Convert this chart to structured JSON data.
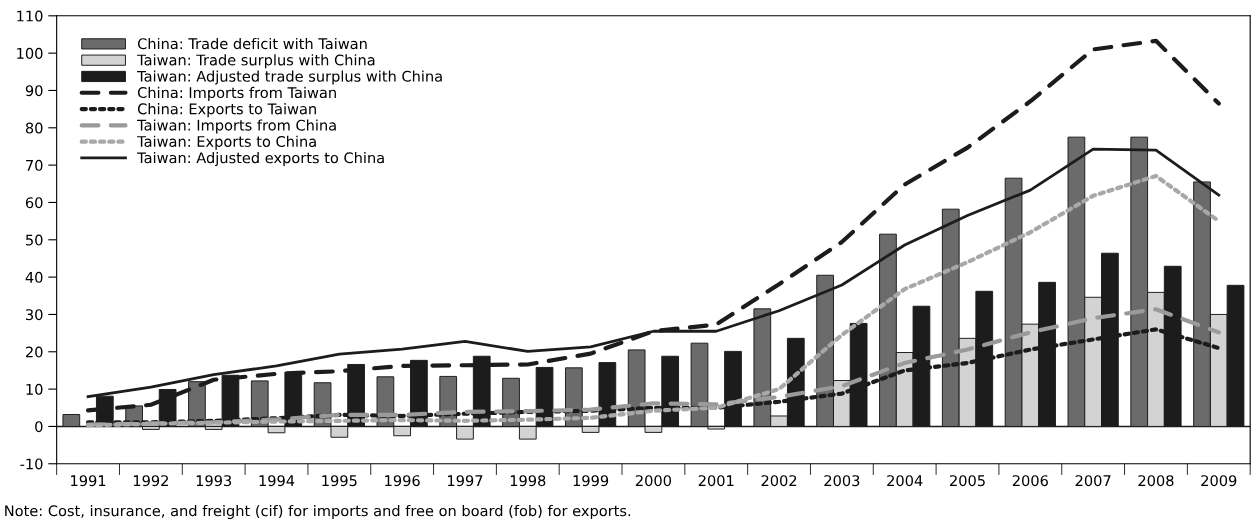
{
  "chart_data": {
    "type": "bar",
    "categories": [
      "1991",
      "1992",
      "1993",
      "1994",
      "1995",
      "1996",
      "1997",
      "1998",
      "1999",
      "2000",
      "2001",
      "2002",
      "2003",
      "2004",
      "2005",
      "2006",
      "2007",
      "2008",
      "2009"
    ],
    "series": [
      {
        "name": "China: Trade deficit with Taiwan",
        "color": "#6b6b6b",
        "values": [
          3.2,
          5.5,
          12.0,
          12.2,
          11.7,
          13.3,
          13.4,
          12.9,
          15.7,
          20.5,
          22.3,
          31.5,
          40.5,
          51.5,
          58.2,
          66.5,
          77.5,
          77.5,
          65.5
        ]
      },
      {
        "name": "Taiwan: Trade surplus with China",
        "color": "#d3d3d3",
        "values": [
          null,
          -0.8,
          -0.8,
          -1.7,
          -2.9,
          -2.5,
          -3.4,
          -3.4,
          -1.6,
          -1.6,
          -0.7,
          2.8,
          12.3,
          19.8,
          23.6,
          27.4,
          34.6,
          35.9,
          30.0
        ]
      },
      {
        "name": "Taiwan: Adjusted trade surplus with China",
        "color": "#1c1c1c",
        "values": [
          8.1,
          9.9,
          13.7,
          14.5,
          16.6,
          17.7,
          18.8,
          15.8,
          17.1,
          18.8,
          20.1,
          23.6,
          27.6,
          32.2,
          36.2,
          38.6,
          46.4,
          42.9,
          37.8
        ]
      },
      {
        "name": "China: Imports from Taiwan",
        "type": "line",
        "line_style": "dashed",
        "color": "#1c1c1c",
        "values": [
          4.3,
          5.8,
          12.5,
          14.1,
          14.8,
          16.2,
          16.4,
          16.6,
          19.5,
          25.5,
          27.3,
          38.1,
          49.4,
          64.8,
          74.7,
          87.1,
          101.0,
          103.3,
          86.5
        ]
      },
      {
        "name": "China: Exports to Taiwan",
        "type": "line",
        "line_style": "dotted",
        "color": "#1c1c1c",
        "values": [
          1.1,
          1.1,
          1.5,
          2.2,
          3.1,
          2.8,
          3.4,
          3.9,
          4.2,
          5.0,
          5.0,
          6.6,
          8.8,
          15.0,
          17.0,
          20.6,
          23.3,
          26.0,
          21.0
        ]
      },
      {
        "name": "Taiwan: Imports from China",
        "type": "line",
        "line_style": "dashed",
        "color": "#9a9a9a",
        "values": [
          0.5,
          0.8,
          1.1,
          1.9,
          3.1,
          3.1,
          3.9,
          4.1,
          4.5,
          6.2,
          5.9,
          7.9,
          10.8,
          17.0,
          20.6,
          25.2,
          29.0,
          31.4,
          25.2
        ]
      },
      {
        "name": "Taiwan: Exports to China",
        "type": "line",
        "line_style": "dotted",
        "color": "#a8a8a8",
        "values": [
          0.3,
          0.7,
          1.0,
          1.3,
          1.5,
          1.7,
          1.5,
          1.8,
          2.3,
          4.2,
          5.0,
          10.0,
          24.5,
          36.8,
          44.0,
          52.0,
          61.8,
          67.1,
          55.0
        ]
      },
      {
        "name": "Taiwan: Adjusted exports to China",
        "type": "line",
        "line_style": "solid",
        "color": "#1c1c1c",
        "values": [
          8.0,
          10.5,
          13.9,
          16.2,
          19.4,
          20.7,
          22.8,
          20.1,
          21.3,
          25.5,
          25.5,
          31.0,
          37.9,
          48.6,
          56.5,
          63.3,
          74.3,
          74.0,
          62.0
        ]
      }
    ],
    "ylim": [
      -10,
      110
    ],
    "yticks": [
      -10,
      0,
      10,
      20,
      30,
      40,
      50,
      60,
      70,
      80,
      90,
      100,
      110
    ],
    "ref_lines": [
      {
        "axis": "y",
        "value": 0,
        "color": "#1c1c1c"
      }
    ],
    "legend": "top left",
    "grid": false,
    "marker": "none",
    "annotations": [
      "Note: Cost, insurance, and freight (cif) for imports and free on board (fob) for exports."
    ]
  }
}
